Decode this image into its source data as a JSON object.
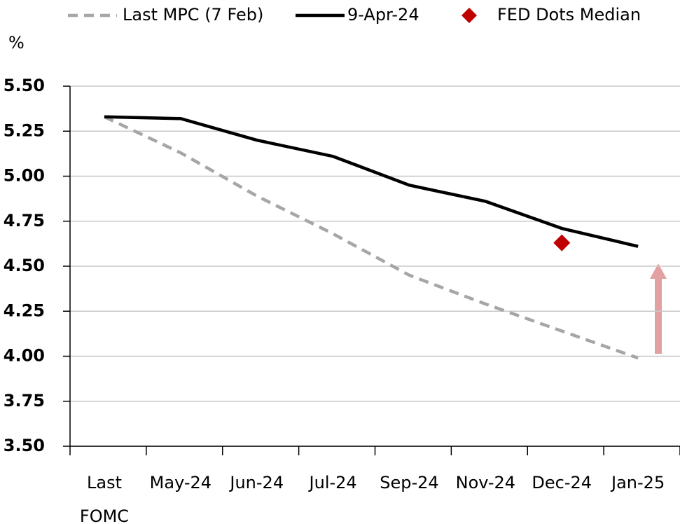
{
  "chart_data": {
    "type": "line",
    "y_label": "%",
    "categories": [
      "Last FOMC",
      "May-24",
      "Jun-24",
      "Jul-24",
      "Sep-24",
      "Nov-24",
      "Dec-24",
      "Jan-25"
    ],
    "series": [
      {
        "name": "Last MPC (7 Feb)",
        "color": "#a6a6a6",
        "style": "dashed",
        "values": [
          5.33,
          5.13,
          4.89,
          4.68,
          4.45,
          4.29,
          4.14,
          3.99
        ]
      },
      {
        "name": "9-Apr-24",
        "color": "#000000",
        "style": "solid",
        "values": [
          5.33,
          5.32,
          5.2,
          5.11,
          4.95,
          4.86,
          4.71,
          4.61
        ]
      },
      {
        "name": "FED Dots Median",
        "color": "#c00000",
        "style": "diamond",
        "values": [
          null,
          null,
          null,
          null,
          null,
          null,
          4.63,
          null
        ]
      }
    ],
    "ylim": [
      3.5,
      5.5
    ],
    "yticks": [
      {
        "value": 3.5,
        "label": "3.50"
      },
      {
        "value": 3.75,
        "label": "3.75"
      },
      {
        "value": 4,
        "label": "4.00"
      },
      {
        "value": 4.25,
        "label": "4.25"
      },
      {
        "value": 4.5,
        "label": "4.50"
      },
      {
        "value": 4.75,
        "label": "4.75"
      },
      {
        "value": 5,
        "label": "5.00"
      },
      {
        "value": 5.25,
        "label": "5.25"
      },
      {
        "value": 5.5,
        "label": "5.50"
      }
    ],
    "grid": true,
    "legend": "top"
  }
}
